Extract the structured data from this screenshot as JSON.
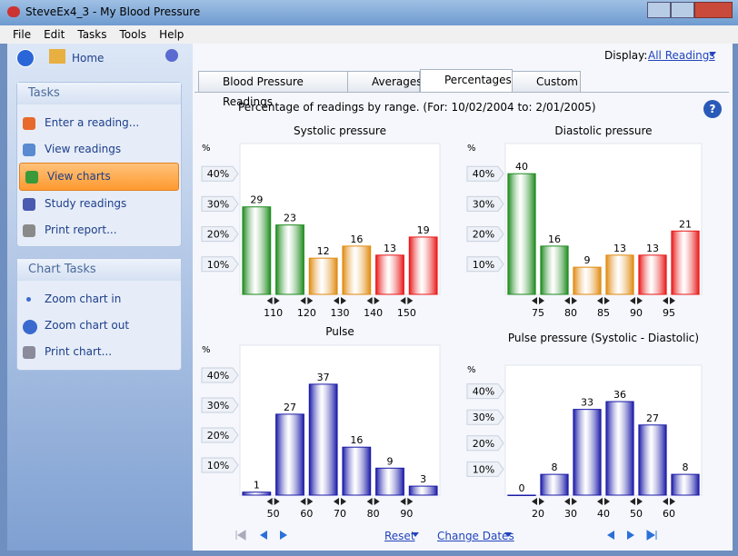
{
  "window": {
    "title": "SteveEx4_3 - My Blood Pressure"
  },
  "menu": [
    "File",
    "Edit",
    "Tasks",
    "Tools",
    "Help"
  ],
  "sidebar": {
    "home": "Home",
    "tasks_title": "Tasks",
    "tasks": [
      "Enter a reading...",
      "View readings",
      "View charts",
      "Study readings",
      "Print report..."
    ],
    "chart_tasks_title": "Chart Tasks",
    "chart_tasks": [
      "Zoom chart in",
      "Zoom chart out",
      "Print chart..."
    ]
  },
  "display": {
    "label": "Display:",
    "value": "All Readings"
  },
  "tabs": [
    "Blood Pressure Readings",
    "Averages",
    "Percentages",
    "Custom"
  ],
  "subtitle": "Percentage of readings by range. (For: 10/02/2004 to: 2/01/2005)",
  "chart_data": [
    {
      "type": "bar",
      "title": "Systolic pressure",
      "y_label": "%",
      "boundaries": [
        "110",
        "120",
        "130",
        "140",
        "150"
      ],
      "values": [
        29,
        23,
        12,
        16,
        13,
        19
      ],
      "colors": [
        "#1e8a1e",
        "#1e8a1e",
        "#e08a10",
        "#e08a10",
        "#e81818",
        "#e81818"
      ],
      "ylim": [
        0,
        50
      ],
      "yticks": [
        {
          "value": 10,
          "label": "10%"
        },
        {
          "value": 20,
          "label": "20%"
        },
        {
          "value": 30,
          "label": "30%"
        },
        {
          "value": 40,
          "label": "40%"
        }
      ]
    },
    {
      "type": "bar",
      "title": "Diastolic pressure",
      "y_label": "%",
      "boundaries": [
        "75",
        "80",
        "85",
        "90",
        "95"
      ],
      "values": [
        40,
        16,
        9,
        13,
        13,
        21
      ],
      "colors": [
        "#1e8a1e",
        "#1e8a1e",
        "#e08a10",
        "#e08a10",
        "#e81818",
        "#e81818"
      ],
      "ylim": [
        0,
        50
      ],
      "yticks": [
        {
          "value": 10,
          "label": "10%"
        },
        {
          "value": 20,
          "label": "20%"
        },
        {
          "value": 30,
          "label": "30%"
        },
        {
          "value": 40,
          "label": "40%"
        }
      ]
    },
    {
      "type": "bar",
      "title": "Pulse",
      "y_label": "%",
      "boundaries": [
        "50",
        "60",
        "70",
        "80",
        "90"
      ],
      "values": [
        1,
        27,
        37,
        16,
        9,
        3
      ],
      "colors": [
        "#1a1aa8",
        "#1a1aa8",
        "#1a1aa8",
        "#1a1aa8",
        "#1a1aa8",
        "#1a1aa8"
      ],
      "ylim": [
        0,
        50
      ],
      "yticks": [
        {
          "value": 10,
          "label": "10%"
        },
        {
          "value": 20,
          "label": "20%"
        },
        {
          "value": 30,
          "label": "30%"
        },
        {
          "value": 40,
          "label": "40%"
        }
      ]
    },
    {
      "type": "bar",
      "title": "Pulse pressure (Systolic - Diastolic)",
      "y_label": "%",
      "boundaries": [
        "20",
        "30",
        "40",
        "50",
        "60"
      ],
      "values": [
        0,
        8,
        33,
        36,
        27,
        8
      ],
      "colors": [
        "#1a1aa8",
        "#1a1aa8",
        "#1a1aa8",
        "#1a1aa8",
        "#1a1aa8",
        "#1a1aa8"
      ],
      "ylim": [
        0,
        50
      ],
      "yticks": [
        {
          "value": 10,
          "label": "10%"
        },
        {
          "value": 20,
          "label": "20%"
        },
        {
          "value": 30,
          "label": "30%"
        },
        {
          "value": 40,
          "label": "40%"
        }
      ]
    }
  ],
  "footer": {
    "reset": "Reset",
    "change_dates": "Change Dates"
  }
}
